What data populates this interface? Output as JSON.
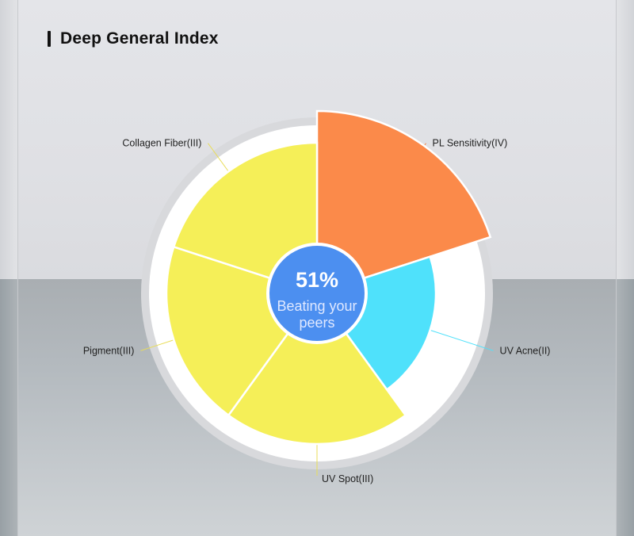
{
  "page": {
    "title": "Deep General Index"
  },
  "chart_data": {
    "type": "pie",
    "variant": "rose",
    "title": "Deep General Index",
    "center": {
      "value": "51%",
      "line1": "Beating your",
      "line2": "peers"
    },
    "categories": [
      "PL Sensitivity(IV)",
      "UV Acne(II)",
      "UV Spot(III)",
      "Pigment(III)",
      "Collagen Fiber(III)"
    ],
    "levels": [
      4,
      2,
      3,
      3,
      3
    ],
    "label_sides": [
      "right",
      "right",
      "bottom",
      "left",
      "left"
    ],
    "colors": {
      "PL Sensitivity(IV)": "#fb8a4a",
      "UV Acne(II)": "#4fe1fb",
      "UV Spot(III)": "#f5ef58",
      "Pigment(III)": "#f5ef58",
      "Collagen Fiber(III)": "#f5ef58",
      "center": "#4c8ff0"
    }
  }
}
